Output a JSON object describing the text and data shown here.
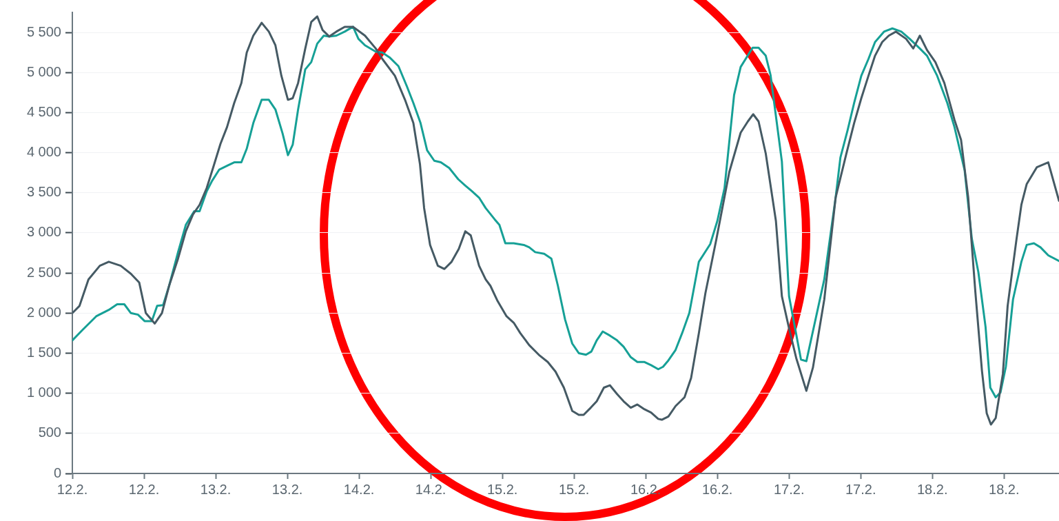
{
  "chart_data": {
    "type": "line",
    "xlim": [
      "--02-12T00:00",
      "--02-18T21:12"
    ],
    "ylim": [
      0,
      5750
    ],
    "xticks": [
      {
        "value": "--02-12T00:00",
        "label": "12.2."
      },
      {
        "value": "--02-12T12:00",
        "label": "12.2."
      },
      {
        "value": "--02-13T00:00",
        "label": "13.2."
      },
      {
        "value": "--02-13T12:00",
        "label": "13.2."
      },
      {
        "value": "--02-14T00:00",
        "label": "14.2."
      },
      {
        "value": "--02-14T12:00",
        "label": "14.2."
      },
      {
        "value": "--02-15T00:00",
        "label": "15.2."
      },
      {
        "value": "--02-15T12:00",
        "label": "15.2."
      },
      {
        "value": "--02-16T00:00",
        "label": "16.2."
      },
      {
        "value": "--02-16T12:00",
        "label": "16.2."
      },
      {
        "value": "--02-17T00:00",
        "label": "17.2."
      },
      {
        "value": "--02-17T12:00",
        "label": "17.2."
      },
      {
        "value": "--02-18T00:00",
        "label": "18.2."
      },
      {
        "value": "--02-18T12:00",
        "label": "18.2."
      }
    ],
    "yticks": [
      0,
      500,
      {
        "value": 1000,
        "label": "1 000"
      },
      {
        "value": 1500,
        "label": "1 500"
      },
      {
        "value": 2000,
        "label": "2 000"
      },
      {
        "value": 2500,
        "label": "2 500"
      },
      {
        "value": 3000,
        "label": "3 000"
      },
      {
        "value": 3500,
        "label": "3 500"
      },
      {
        "value": 4000,
        "label": "4 000"
      },
      {
        "value": 4500,
        "label": "4 500"
      },
      {
        "value": 5000,
        "label": "5 000"
      },
      {
        "value": 5500,
        "label": "5 500"
      }
    ],
    "grid": "y",
    "legend": false,
    "marker": "none",
    "line_style": "solid",
    "series": [
      {
        "color": "#455a64",
        "x": [
          "--02-12T00:00",
          "--02-12T01:12",
          "--02-12T02:42",
          "--02-12T04:36",
          "--02-12T06:06",
          "--02-12T08:06",
          "--02-12T09:48",
          "--02-12T11:12",
          "--02-12T12:18",
          "--02-12T13:48",
          "--02-12T15:00",
          "--02-12T16:12",
          "--02-12T17:42",
          "--02-12T19:00",
          "--02-12T20:12",
          "--02-12T21:18",
          "--02-12T22:30",
          "--02-12T23:36",
          "--02-13T00:48",
          "--02-13T01:54",
          "--02-13T03:06",
          "--02-13T04:18",
          "--02-13T05:12",
          "--02-13T06:18",
          "--02-13T07:42",
          "--02-13T08:54",
          "--02-13T10:00",
          "--02-13T11:00",
          "--02-13T12:06",
          "--02-13T12:54",
          "--02-13T13:48",
          "--02-13T15:00",
          "--02-13T16:00",
          "--02-13T17:00",
          "--02-13T17:54",
          "--02-13T19:00",
          "--02-13T20:12",
          "--02-13T21:36",
          "--02-13T23:00",
          "--02-14T00:06",
          "--02-14T01:00",
          "--02-14T02:48",
          "--02-14T03:54",
          "--02-14T06:00",
          "--02-14T07:42",
          "--02-14T09:06",
          "--02-14T10:12",
          "--02-14T10:54",
          "--02-14T11:54",
          "--02-14T13:12",
          "--02-14T14:18",
          "--02-14T15:30",
          "--02-14T16:42",
          "--02-14T17:48",
          "--02-14T18:42",
          "--02-14T20:06",
          "--02-14T21:12",
          "--02-14T22:00",
          "--02-14T23:12",
          "--02-15T00:42",
          "--02-15T01:54",
          "--02-15T03:00",
          "--02-15T04:30",
          "--02-15T06:06",
          "--02-15T07:36",
          "--02-15T08:54",
          "--02-15T10:18",
          "--02-15T11:42",
          "--02-15T12:48",
          "--02-15T13:36",
          "--02-15T14:48",
          "--02-15T15:48",
          "--02-15T17:00",
          "--02-15T18:00",
          "--02-15T19:12",
          "--02-15T20:18",
          "--02-15T21:30",
          "--02-15T22:36",
          "--02-15T23:48",
          "--02-16T00:54",
          "--02-16T02:06",
          "--02-16T02:42",
          "--02-16T03:48",
          "--02-16T05:00",
          "--02-16T06:30",
          "--02-16T07:36",
          "--02-16T08:54",
          "--02-16T10:00",
          "--02-16T11:48",
          "--02-16T14:00",
          "--02-16T15:54",
          "--02-16T17:06",
          "--02-16T18:00",
          "--02-16T18:54",
          "--02-16T20:06",
          "--02-16T21:48",
          "--02-16T22:48",
          "--02-17T00:00",
          "--02-17T01:12",
          "--02-17T02:54",
          "--02-17T04:00",
          "--02-17T05:54",
          "--02-17T07:48",
          "--02-17T09:36",
          "--02-17T10:54",
          "--02-17T12:06",
          "--02-17T13:18",
          "--02-17T14:24",
          "--02-17T15:36",
          "--02-17T16:42",
          "--02-17T17:54",
          "--02-17T19:36",
          "--02-17T20:48",
          "--02-17T21:54",
          "--02-17T23:06",
          "--02-18T00:30",
          "--02-18T02:00",
          "--02-18T03:42",
          "--02-18T04:48",
          "--02-18T06:00",
          "--02-18T07:12",
          "--02-18T08:18",
          "--02-18T09:06",
          "--02-18T09:48",
          "--02-18T10:36",
          "--02-18T11:48",
          "--02-18T12:36",
          "--02-18T14:06",
          "--02-18T14:54",
          "--02-18T15:48",
          "--02-18T17:30",
          "--02-18T19:24",
          "--02-18T21:12"
        ],
        "values": [
          2000,
          2090,
          2420,
          2590,
          2640,
          2590,
          2490,
          2380,
          2000,
          1870,
          2000,
          2340,
          2680,
          3020,
          3230,
          3350,
          3560,
          3820,
          4110,
          4320,
          4620,
          4870,
          5250,
          5460,
          5620,
          5510,
          5340,
          4960,
          4660,
          4680,
          4870,
          5300,
          5630,
          5700,
          5530,
          5450,
          5510,
          5570,
          5570,
          5510,
          5460,
          5300,
          5170,
          4960,
          4660,
          4370,
          3860,
          3310,
          2850,
          2590,
          2550,
          2640,
          2800,
          3020,
          2970,
          2590,
          2420,
          2340,
          2150,
          1960,
          1880,
          1750,
          1600,
          1480,
          1390,
          1270,
          1070,
          780,
          730,
          730,
          820,
          900,
          1070,
          1100,
          990,
          900,
          820,
          860,
          800,
          760,
          680,
          670,
          710,
          840,
          950,
          1190,
          1750,
          2250,
          2910,
          3760,
          4250,
          4390,
          4480,
          4390,
          3990,
          3150,
          2210,
          1810,
          1440,
          1030,
          1320,
          2170,
          3440,
          3990,
          4370,
          4680,
          4960,
          5210,
          5380,
          5460,
          5510,
          5420,
          5300,
          5460,
          5280,
          5130,
          4870,
          4410,
          4160,
          3440,
          2260,
          1280,
          750,
          610,
          690,
          1240,
          2090,
          2930,
          3350,
          3610,
          3820,
          3880,
          3400
        ]
      },
      {
        "color": "#16a096",
        "x": [
          "--02-12T00:00",
          "--02-12T01:42",
          "--02-12T04:00",
          "--02-12T06:06",
          "--02-12T07:30",
          "--02-12T08:42",
          "--02-12T09:48",
          "--02-12T11:00",
          "--02-12T12:06",
          "--02-12T13:18",
          "--02-12T14:12",
          "--02-12T15:12",
          "--02-12T16:12",
          "--02-12T17:42",
          "--02-12T19:00",
          "--02-12T20:24",
          "--02-12T21:18",
          "--02-12T22:30",
          "--02-12T23:24",
          "--02-13T00:36",
          "--02-13T02:00",
          "--02-13T03:06",
          "--02-13T04:18",
          "--02-13T05:12",
          "--02-13T06:18",
          "--02-13T07:42",
          "--02-13T08:54",
          "--02-13T10:00",
          "--02-13T11:12",
          "--02-13T12:06",
          "--02-13T12:54",
          "--02-13T13:48",
          "--02-13T15:00",
          "--02-13T16:00",
          "--02-13T17:00",
          "--02-13T18:06",
          "--02-13T19:00",
          "--02-13T20:12",
          "--02-13T21:36",
          "--02-13T23:00",
          "--02-13T23:54",
          "--02-14T01:00",
          "--02-14T02:48",
          "--02-14T03:54",
          "--02-14T05:06",
          "--02-14T06:36",
          "--02-14T08:00",
          "--02-14T09:06",
          "--02-14T10:18",
          "--02-14T11:24",
          "--02-14T12:36",
          "--02-14T13:42",
          "--02-14T15:06",
          "--02-14T16:36",
          "--02-14T17:48",
          "--02-14T18:54",
          "--02-14T20:06",
          "--02-14T21:12",
          "--02-14T22:42",
          "--02-14T23:30",
          "--02-15T00:30",
          "--02-15T01:54",
          "--02-15T03:36",
          "--02-15T04:30",
          "--02-15T05:30",
          "--02-15T07:00",
          "--02-15T08:12",
          "--02-15T09:18",
          "--02-15T10:30",
          "--02-15T11:42",
          "--02-15T12:48",
          "--02-15T14:00",
          "--02-15T14:54",
          "--02-15T15:48",
          "--02-15T16:48",
          "--02-15T18:00",
          "--02-15T19:12",
          "--02-15T20:18",
          "--02-15T21:30",
          "--02-15T22:36",
          "--02-15T23:48",
          "--02-16T00:54",
          "--02-16T02:06",
          "--02-16T02:54",
          "--02-16T03:48",
          "--02-16T05:00",
          "--02-16T06:06",
          "--02-16T07:18",
          "--02-16T08:54",
          "--02-16T10:48",
          "--02-16T12:00",
          "--02-16T13:12",
          "--02-16T14:48",
          "--02-16T15:54",
          "--02-16T17:54",
          "--02-16T18:54",
          "--02-16T20:06",
          "--02-16T20:54",
          "--02-16T22:48",
          "--02-17T00:00",
          "--02-17T02:00",
          "--02-17T02:54",
          "--02-17T05:54",
          "--02-17T07:48",
          "--02-17T08:36",
          "--02-17T09:48",
          "--02-17T10:54",
          "--02-17T12:06",
          "--02-17T13:18",
          "--02-17T14:24",
          "--02-17T15:54",
          "--02-17T17:18",
          "--02-17T18:48",
          "--02-17T20:12",
          "--02-17T21:54",
          "--02-17T23:06",
          "--02-18T00:48",
          "--02-18T02:30",
          "--02-18T03:42",
          "--02-18T05:24",
          "--02-18T06:36",
          "--02-18T07:42",
          "--02-18T08:54",
          "--02-18T09:42",
          "--02-18T10:36",
          "--02-18T11:24",
          "--02-18T12:18",
          "--02-18T13:30",
          "--02-18T14:54",
          "--02-18T15:48",
          "--02-18T17:00",
          "--02-18T18:06",
          "--02-18T19:24",
          "--02-18T21:12"
        ],
        "values": [
          1660,
          1790,
          1960,
          2040,
          2110,
          2110,
          2000,
          1980,
          1900,
          1900,
          2090,
          2100,
          2340,
          2760,
          3100,
          3270,
          3270,
          3520,
          3650,
          3790,
          3840,
          3880,
          3880,
          4050,
          4370,
          4660,
          4660,
          4540,
          4240,
          3970,
          4100,
          4540,
          5040,
          5130,
          5360,
          5460,
          5450,
          5460,
          5510,
          5570,
          5420,
          5340,
          5260,
          5250,
          5190,
          5080,
          4830,
          4620,
          4370,
          4030,
          3900,
          3880,
          3810,
          3670,
          3590,
          3520,
          3440,
          3310,
          3170,
          3100,
          2870,
          2870,
          2850,
          2820,
          2760,
          2740,
          2680,
          2340,
          1920,
          1620,
          1500,
          1480,
          1520,
          1660,
          1770,
          1720,
          1660,
          1580,
          1450,
          1390,
          1390,
          1350,
          1300,
          1330,
          1410,
          1540,
          1750,
          2000,
          2640,
          2860,
          3150,
          3560,
          4720,
          5070,
          5310,
          5310,
          5210,
          4970,
          3890,
          2210,
          1420,
          1400,
          2420,
          3440,
          3940,
          4280,
          4620,
          4960,
          5170,
          5380,
          5510,
          5550,
          5510,
          5420,
          5300,
          5210,
          4960,
          4620,
          4320,
          3780,
          2930,
          2510,
          1830,
          1070,
          950,
          1010,
          1330,
          2170,
          2640,
          2850,
          2870,
          2820,
          2720,
          2650
        ]
      }
    ]
  }
}
